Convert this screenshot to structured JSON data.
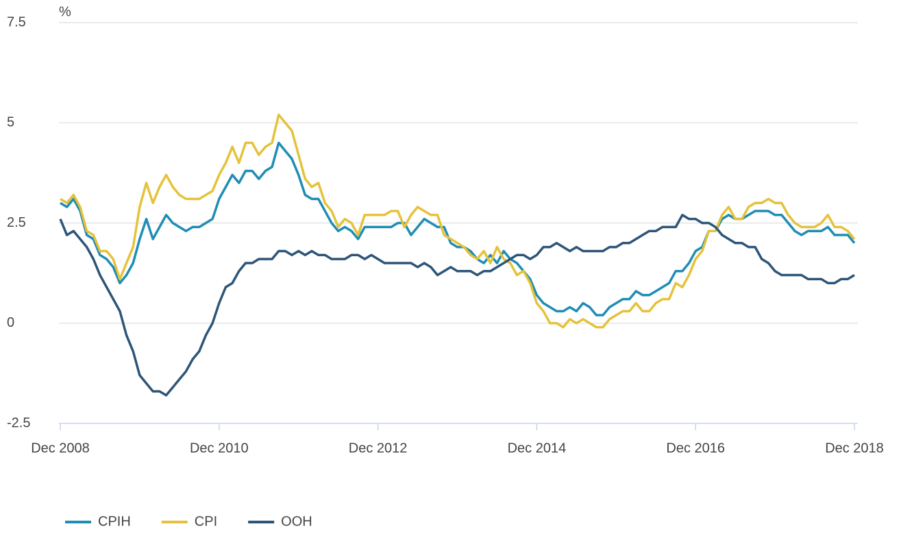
{
  "chart_data": {
    "type": "line",
    "y_label": "%",
    "ylim": [
      -2.5,
      7.5
    ],
    "yticks": [
      7.5,
      5,
      2.5,
      0,
      -2.5
    ],
    "grid": true,
    "legend": "bottom",
    "categories": [
      "Dec 2008",
      null,
      null,
      null,
      null,
      null,
      null,
      null,
      null,
      null,
      null,
      null,
      null,
      null,
      null,
      null,
      null,
      null,
      null,
      null,
      null,
      null,
      null,
      null,
      "Dec 2010",
      null,
      null,
      null,
      null,
      null,
      null,
      null,
      null,
      null,
      null,
      null,
      null,
      null,
      null,
      null,
      null,
      null,
      null,
      null,
      null,
      null,
      null,
      null,
      "Dec 2012",
      null,
      null,
      null,
      null,
      null,
      null,
      null,
      null,
      null,
      null,
      null,
      null,
      null,
      null,
      null,
      null,
      null,
      null,
      null,
      null,
      null,
      null,
      null,
      "Dec 2014",
      null,
      null,
      null,
      null,
      null,
      null,
      null,
      null,
      null,
      null,
      null,
      null,
      null,
      null,
      null,
      null,
      null,
      null,
      null,
      null,
      null,
      null,
      null,
      "Dec 2016",
      null,
      null,
      null,
      null,
      null,
      null,
      null,
      null,
      null,
      null,
      null,
      null,
      null,
      null,
      null,
      null,
      null,
      null,
      null,
      null,
      null,
      null,
      null,
      "Dec 2018"
    ],
    "series": [
      {
        "name": "CPIH",
        "color": "#1f8db4",
        "values": [
          3.0,
          2.9,
          3.1,
          2.8,
          2.2,
          2.1,
          1.7,
          1.6,
          1.4,
          1.0,
          1.2,
          1.5,
          2.1,
          2.6,
          2.1,
          2.4,
          2.7,
          2.5,
          2.4,
          2.3,
          2.4,
          2.4,
          2.5,
          2.6,
          3.1,
          3.4,
          3.7,
          3.5,
          3.8,
          3.8,
          3.6,
          3.8,
          3.9,
          4.5,
          4.3,
          4.1,
          3.7,
          3.2,
          3.1,
          3.1,
          2.8,
          2.5,
          2.3,
          2.4,
          2.3,
          2.1,
          2.4,
          2.4,
          2.4,
          2.4,
          2.4,
          2.5,
          2.5,
          2.2,
          2.4,
          2.6,
          2.5,
          2.4,
          2.4,
          2.0,
          1.9,
          1.9,
          1.8,
          1.6,
          1.5,
          1.7,
          1.5,
          1.8,
          1.6,
          1.5,
          1.3,
          1.1,
          0.7,
          0.5,
          0.4,
          0.3,
          0.3,
          0.4,
          0.3,
          0.5,
          0.4,
          0.2,
          0.2,
          0.4,
          0.5,
          0.6,
          0.6,
          0.8,
          0.7,
          0.7,
          0.8,
          0.9,
          1.0,
          1.3,
          1.3,
          1.5,
          1.8,
          1.9,
          2.3,
          2.3,
          2.6,
          2.7,
          2.6,
          2.6,
          2.7,
          2.8,
          2.8,
          2.8,
          2.7,
          2.7,
          2.5,
          2.3,
          2.2,
          2.3,
          2.3,
          2.3,
          2.4,
          2.2,
          2.2,
          2.2,
          2.0
        ]
      },
      {
        "name": "CPI",
        "color": "#e5c23b",
        "values": [
          3.1,
          3.0,
          3.2,
          2.9,
          2.3,
          2.2,
          1.8,
          1.8,
          1.6,
          1.1,
          1.5,
          1.9,
          2.9,
          3.5,
          3.0,
          3.4,
          3.7,
          3.4,
          3.2,
          3.1,
          3.1,
          3.1,
          3.2,
          3.3,
          3.7,
          4.0,
          4.4,
          4.0,
          4.5,
          4.5,
          4.2,
          4.4,
          4.5,
          5.2,
          5.0,
          4.8,
          4.2,
          3.6,
          3.4,
          3.5,
          3.0,
          2.8,
          2.4,
          2.6,
          2.5,
          2.2,
          2.7,
          2.7,
          2.7,
          2.7,
          2.8,
          2.8,
          2.4,
          2.7,
          2.9,
          2.8,
          2.7,
          2.7,
          2.2,
          2.1,
          2.0,
          1.9,
          1.7,
          1.6,
          1.8,
          1.5,
          1.9,
          1.6,
          1.5,
          1.2,
          1.3,
          1.0,
          0.5,
          0.3,
          0.0,
          0.0,
          -0.1,
          0.1,
          0.0,
          0.1,
          0.0,
          -0.1,
          -0.1,
          0.1,
          0.2,
          0.3,
          0.3,
          0.5,
          0.3,
          0.3,
          0.5,
          0.6,
          0.6,
          1.0,
          0.9,
          1.2,
          1.6,
          1.8,
          2.3,
          2.3,
          2.7,
          2.9,
          2.6,
          2.6,
          2.9,
          3.0,
          3.0,
          3.1,
          3.0,
          3.0,
          2.7,
          2.5,
          2.4,
          2.4,
          2.4,
          2.5,
          2.7,
          2.4,
          2.4,
          2.3,
          2.1
        ]
      },
      {
        "name": "OOH",
        "color": "#2d5578",
        "values": [
          2.6,
          2.2,
          2.3,
          2.1,
          1.9,
          1.6,
          1.2,
          0.9,
          0.6,
          0.3,
          -0.3,
          -0.7,
          -1.3,
          -1.5,
          -1.7,
          -1.7,
          -1.8,
          -1.6,
          -1.4,
          -1.2,
          -0.9,
          -0.7,
          -0.3,
          0.0,
          0.5,
          0.9,
          1.0,
          1.3,
          1.5,
          1.5,
          1.6,
          1.6,
          1.6,
          1.8,
          1.8,
          1.7,
          1.8,
          1.7,
          1.8,
          1.7,
          1.7,
          1.6,
          1.6,
          1.6,
          1.7,
          1.7,
          1.6,
          1.7,
          1.6,
          1.5,
          1.5,
          1.5,
          1.5,
          1.5,
          1.4,
          1.5,
          1.4,
          1.2,
          1.3,
          1.4,
          1.3,
          1.3,
          1.3,
          1.2,
          1.3,
          1.3,
          1.4,
          1.5,
          1.6,
          1.7,
          1.7,
          1.6,
          1.7,
          1.9,
          1.9,
          2.0,
          1.9,
          1.8,
          1.9,
          1.8,
          1.8,
          1.8,
          1.8,
          1.9,
          1.9,
          2.0,
          2.0,
          2.1,
          2.2,
          2.3,
          2.3,
          2.4,
          2.4,
          2.4,
          2.7,
          2.6,
          2.6,
          2.5,
          2.5,
          2.4,
          2.2,
          2.1,
          2.0,
          2.0,
          1.9,
          1.9,
          1.6,
          1.5,
          1.3,
          1.2,
          1.2,
          1.2,
          1.2,
          1.1,
          1.1,
          1.1,
          1.0,
          1.0,
          1.1,
          1.1,
          1.2
        ]
      }
    ]
  }
}
